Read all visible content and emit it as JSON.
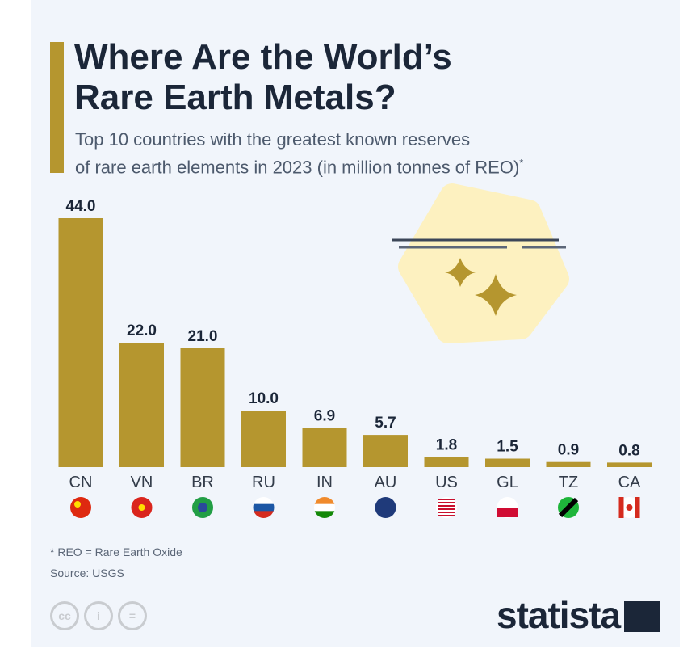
{
  "title_line1": "Where Are the World’s",
  "title_line2": "Rare Earth Metals?",
  "subtitle_line1": "Top 10 countries with the greatest known reserves",
  "subtitle_line2": "of rare earth elements in 2023 (in million tonnes of REO)",
  "subtitle_mark": "*",
  "footnote": "* REO = Rare Earth Oxide",
  "source": "Source: USGS",
  "license_icons": [
    "cc",
    "i",
    "="
  ],
  "brand": "statista",
  "colors": {
    "bar": "#b5962f",
    "background": "#f1f5fb",
    "title": "#1b2638"
  },
  "chart_data": {
    "type": "bar",
    "title": "Where Are the World’s Rare Earth Metals?",
    "categories": [
      "CN",
      "VN",
      "BR",
      "RU",
      "IN",
      "AU",
      "US",
      "GL",
      "TZ",
      "CA"
    ],
    "values": [
      44.0,
      22.0,
      21.0,
      10.0,
      6.9,
      5.7,
      1.8,
      1.5,
      0.9,
      0.8
    ],
    "value_labels": [
      "44.0",
      "22.0",
      "21.0",
      "10.0",
      "6.9",
      "5.7",
      "1.8",
      "1.5",
      "0.9",
      "0.8"
    ],
    "xlabel": "",
    "ylabel": "million tonnes of REO",
    "ylim": [
      0,
      44
    ],
    "grid": false
  }
}
